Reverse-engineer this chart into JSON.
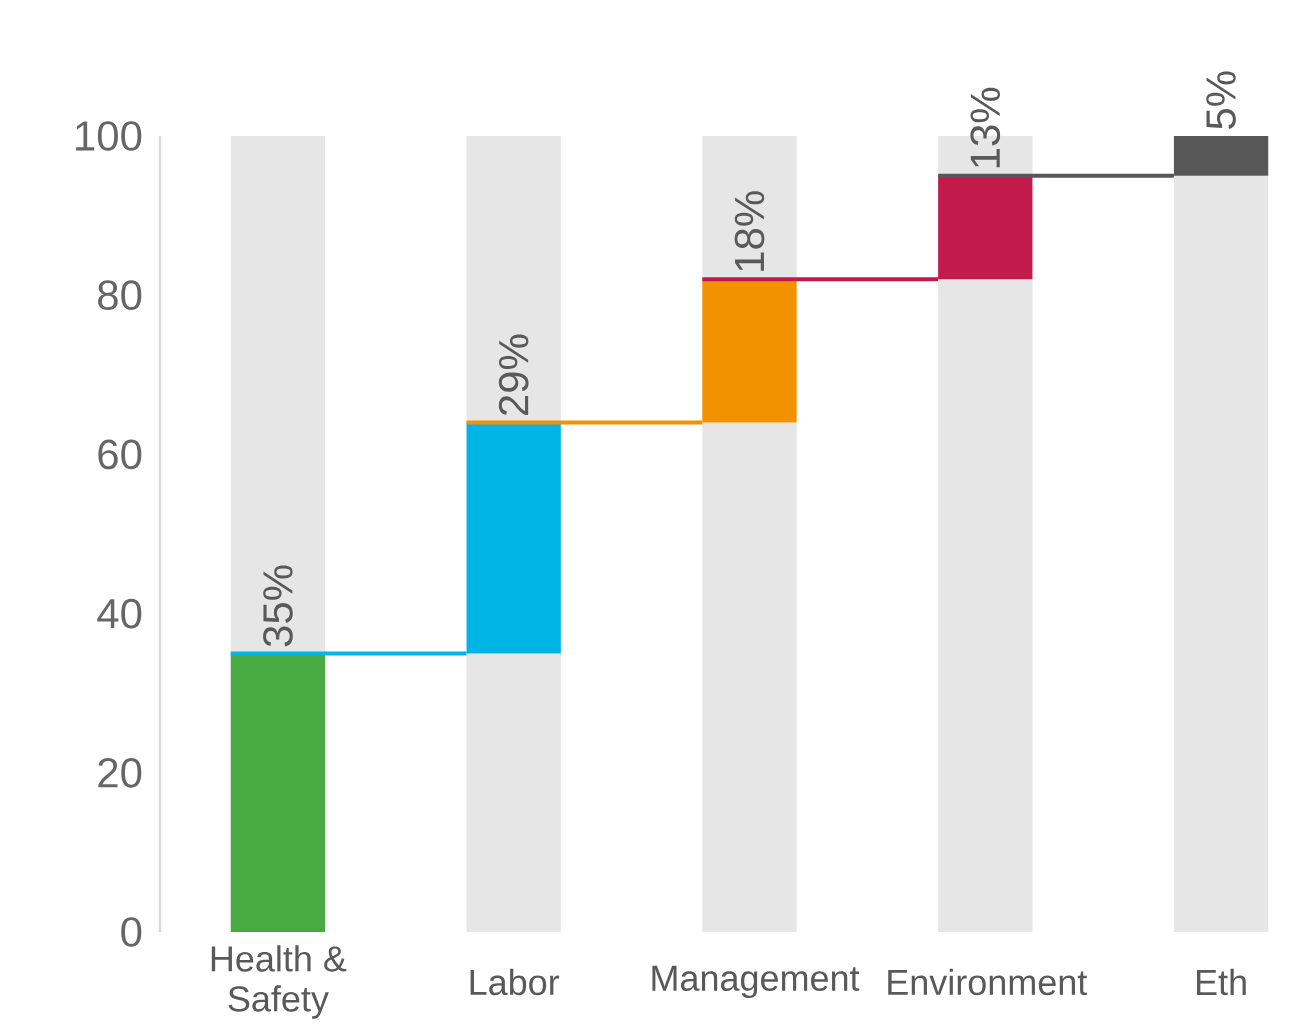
{
  "chart_data": {
    "type": "bar",
    "stacked": true,
    "categories": [
      "Health & Safety",
      "Labor",
      "Management",
      "Environment",
      "Eth"
    ],
    "series": [
      {
        "color": "#e6e6e6",
        "values": [
          0,
          35,
          64,
          82,
          95
        ]
      },
      {
        "colors": [
          "#4aaa42",
          "#00b5e6",
          "#f39200",
          "#c21a4b",
          "#575757"
        ],
        "values": [
          35,
          29,
          18,
          13,
          5
        ],
        "value_labels": [
          "35%",
          "29%",
          "18%",
          "13%",
          "5%"
        ]
      },
      {
        "color": "#e6e6e6",
        "values": [
          65,
          36,
          18,
          5,
          0
        ]
      }
    ],
    "ylim": [
      0,
      100
    ],
    "yticks": [
      0,
      20,
      40,
      60,
      80,
      100
    ]
  }
}
